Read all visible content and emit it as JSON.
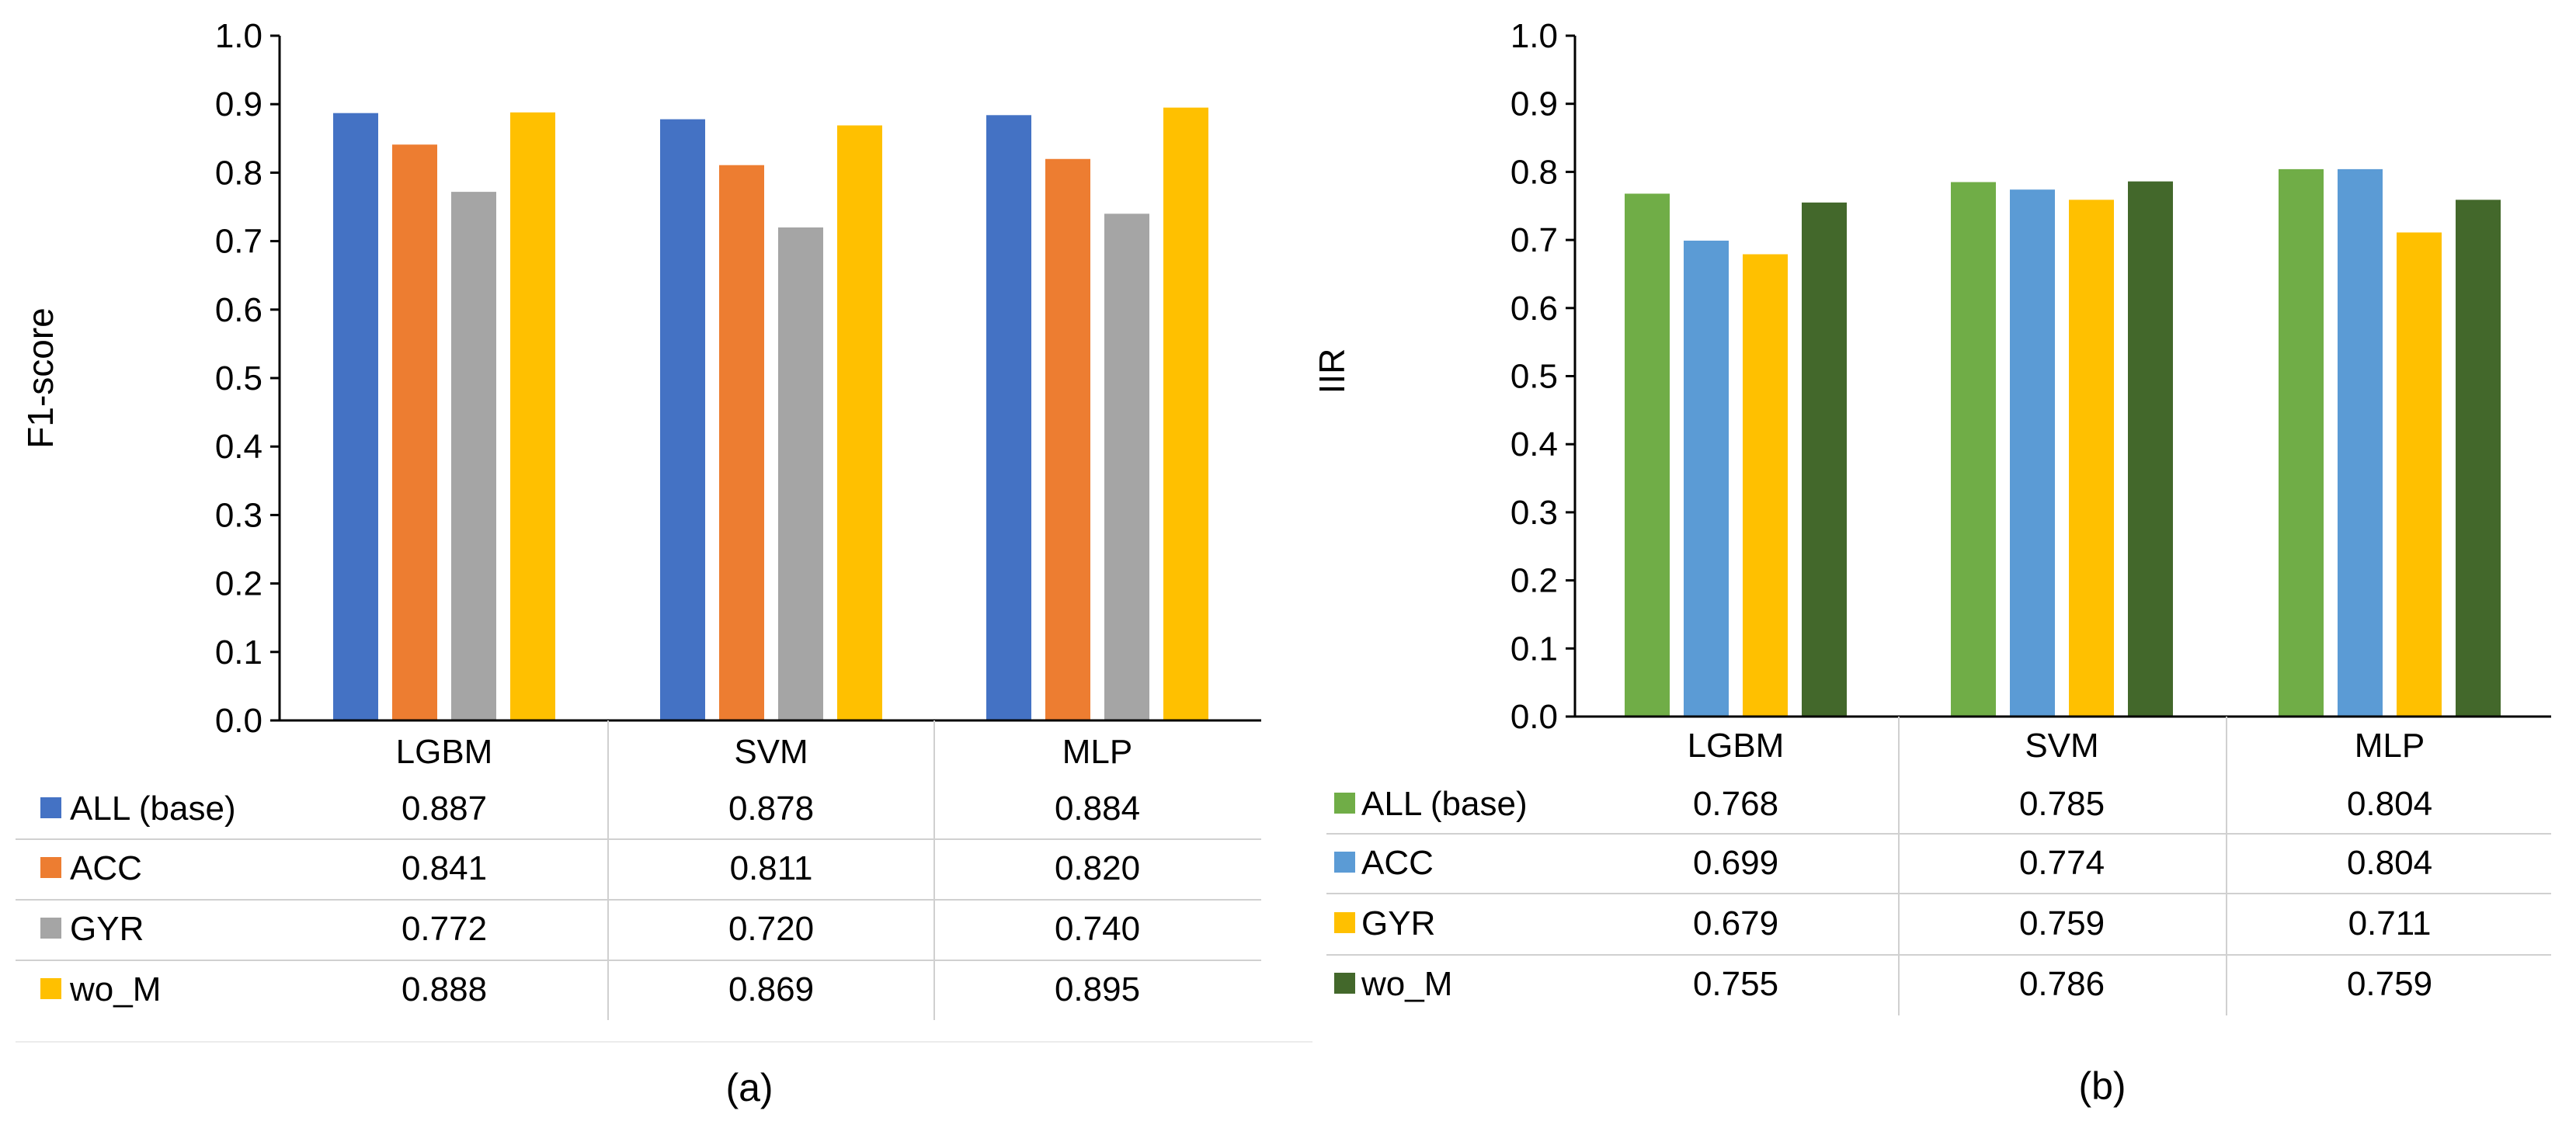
{
  "chart_data": [
    {
      "type": "bar",
      "panel_label": "(a)",
      "ylabel": "F1-score",
      "ylim": [
        0,
        1.0
      ],
      "yticks": [
        "0.0",
        "0.1",
        "0.2",
        "0.3",
        "0.4",
        "0.5",
        "0.6",
        "0.7",
        "0.8",
        "0.9",
        "1.0"
      ],
      "categories": [
        "LGBM",
        "SVM",
        "MLP"
      ],
      "series": [
        {
          "name": "ALL (base)",
          "color": "#4472C4",
          "values": [
            0.887,
            0.878,
            0.884
          ],
          "labels": [
            "0.887",
            "0.878",
            "0.884"
          ]
        },
        {
          "name": "ACC",
          "color": "#ED7D31",
          "values": [
            0.841,
            0.811,
            0.82
          ],
          "labels": [
            "0.841",
            "0.811",
            "0.820"
          ]
        },
        {
          "name": "GYR",
          "color": "#A5A5A5",
          "values": [
            0.772,
            0.72,
            0.74
          ],
          "labels": [
            "0.772",
            "0.720",
            "0.740"
          ]
        },
        {
          "name": "wo_M",
          "color": "#FFC000",
          "values": [
            0.888,
            0.869,
            0.895
          ],
          "labels": [
            "0.888",
            "0.869",
            "0.895"
          ]
        }
      ]
    },
    {
      "type": "bar",
      "panel_label": "(b)",
      "ylabel": "IIR",
      "ylim": [
        0,
        1.0
      ],
      "yticks": [
        "0.0",
        "0.1",
        "0.2",
        "0.3",
        "0.4",
        "0.5",
        "0.6",
        "0.7",
        "0.8",
        "0.9",
        "1.0"
      ],
      "categories": [
        "LGBM",
        "SVM",
        "MLP"
      ],
      "series": [
        {
          "name": "ALL (base)",
          "color": "#70AD47",
          "values": [
            0.768,
            0.785,
            0.804
          ],
          "labels": [
            "0.768",
            "0.785",
            "0.804"
          ]
        },
        {
          "name": "ACC",
          "color": "#5B9BD5",
          "values": [
            0.699,
            0.774,
            0.804
          ],
          "labels": [
            "0.699",
            "0.774",
            "0.804"
          ]
        },
        {
          "name": "GYR",
          "color": "#FFC000",
          "values": [
            0.679,
            0.759,
            0.711
          ],
          "labels": [
            "0.679",
            "0.759",
            "0.711"
          ]
        },
        {
          "name": "wo_M",
          "color": "#43682B",
          "values": [
            0.755,
            0.786,
            0.759
          ],
          "labels": [
            "0.755",
            "0.786",
            "0.759"
          ]
        }
      ]
    }
  ]
}
